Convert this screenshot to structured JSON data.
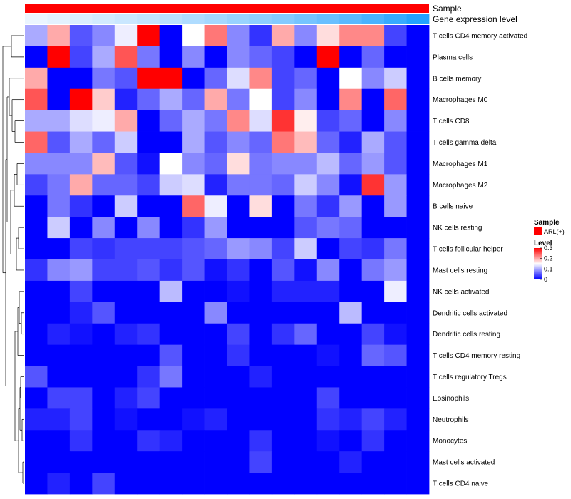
{
  "chart_data": {
    "type": "heatmap",
    "annotations": [
      {
        "name": "Sample",
        "kind": "categorical"
      },
      {
        "name": "Gene expression level",
        "kind": "gradient"
      }
    ],
    "rows": [
      "T cells CD4 memory activated",
      "Plasma cells",
      "B cells memory",
      "Macrophages M0",
      "T cells CD8",
      "T cells gamma delta",
      "Macrophages M1",
      "Macrophages M2",
      "B cells naive",
      "NK cells resting",
      "T cells follicular helper",
      "Mast cells resting",
      "NK cells activated",
      "Dendritic cells activated",
      "Dendritic cells resting",
      "T cells CD4 memory resting",
      "T cells regulatory  Tregs",
      "Eosinophils",
      "Neutrophils",
      "Monocytes",
      "Mast cells activated",
      "T cells CD4 naive"
    ],
    "n_columns": 18,
    "values": [
      [
        0.1,
        0.2,
        0.05,
        0.08,
        0.14,
        0.3,
        0.0,
        0.15,
        0.23,
        0.08,
        0.03,
        0.2,
        0.08,
        0.17,
        0.22,
        0.22,
        0.04,
        0.0
      ],
      [
        0.0,
        0.3,
        0.04,
        0.1,
        0.25,
        0.07,
        0.0,
        0.08,
        0.0,
        0.08,
        0.06,
        0.04,
        0.0,
        0.3,
        0.0,
        0.06,
        0.0,
        0.0
      ],
      [
        0.2,
        0.0,
        0.0,
        0.07,
        0.05,
        0.3,
        0.3,
        0.0,
        0.06,
        0.13,
        0.22,
        0.04,
        0.06,
        0.0,
        0.15,
        0.08,
        0.12,
        0.0
      ],
      [
        0.25,
        0.0,
        0.3,
        0.18,
        0.02,
        0.06,
        0.1,
        0.06,
        0.2,
        0.07,
        0.15,
        0.04,
        0.08,
        0.0,
        0.22,
        0.0,
        0.24,
        0.0
      ],
      [
        0.1,
        0.1,
        0.13,
        0.14,
        0.2,
        0.0,
        0.06,
        0.1,
        0.07,
        0.22,
        0.13,
        0.27,
        0.16,
        0.04,
        0.06,
        0.0,
        0.08,
        0.0
      ],
      [
        0.24,
        0.05,
        0.1,
        0.06,
        0.12,
        0.0,
        0.0,
        0.1,
        0.05,
        0.08,
        0.06,
        0.23,
        0.19,
        0.06,
        0.02,
        0.1,
        0.05,
        0.0
      ],
      [
        0.08,
        0.08,
        0.08,
        0.19,
        0.05,
        0.01,
        0.15,
        0.08,
        0.06,
        0.17,
        0.07,
        0.08,
        0.08,
        0.11,
        0.06,
        0.09,
        0.05,
        0.0
      ],
      [
        0.04,
        0.07,
        0.2,
        0.06,
        0.06,
        0.04,
        0.12,
        0.13,
        0.02,
        0.07,
        0.07,
        0.06,
        0.12,
        0.08,
        0.01,
        0.27,
        0.09,
        0.0
      ],
      [
        0.0,
        0.07,
        0.03,
        0.0,
        0.12,
        0.0,
        0.0,
        0.24,
        0.14,
        0.0,
        0.17,
        0.0,
        0.07,
        0.03,
        0.09,
        0.0,
        0.09,
        0.0
      ],
      [
        0.0,
        0.12,
        0.0,
        0.08,
        0.0,
        0.08,
        0.0,
        0.03,
        0.09,
        0.0,
        0.0,
        0.0,
        0.05,
        0.07,
        0.06,
        0.0,
        0.0,
        0.0
      ],
      [
        0.0,
        0.0,
        0.04,
        0.03,
        0.04,
        0.04,
        0.04,
        0.05,
        0.06,
        0.09,
        0.08,
        0.04,
        0.12,
        0.0,
        0.04,
        0.03,
        0.07,
        0.0
      ],
      [
        0.03,
        0.08,
        0.09,
        0.04,
        0.04,
        0.05,
        0.03,
        0.05,
        0.01,
        0.03,
        0.0,
        0.05,
        0.01,
        0.08,
        0.0,
        0.07,
        0.09,
        0.0
      ],
      [
        0.0,
        0.0,
        0.04,
        0.0,
        0.0,
        0.0,
        0.11,
        0.0,
        0.0,
        0.01,
        0.0,
        0.02,
        0.02,
        0.02,
        0.0,
        0.0,
        0.14,
        0.0
      ],
      [
        0.0,
        0.0,
        0.02,
        0.05,
        0.0,
        0.0,
        0.0,
        0.0,
        0.08,
        0.0,
        0.0,
        0.0,
        0.0,
        0.0,
        0.11,
        0.0,
        0.0,
        0.0
      ],
      [
        0.0,
        0.02,
        0.01,
        0.0,
        0.02,
        0.03,
        0.0,
        0.0,
        0.0,
        0.04,
        0.0,
        0.03,
        0.06,
        0.0,
        0.0,
        0.04,
        0.01,
        0.0
      ],
      [
        0.0,
        0.0,
        0.0,
        0.0,
        0.0,
        0.0,
        0.05,
        0.0,
        0.0,
        0.03,
        0.0,
        0.0,
        0.0,
        0.01,
        0.0,
        0.06,
        0.05,
        0.0
      ],
      [
        0.05,
        0.0,
        0.0,
        0.0,
        0.0,
        0.03,
        0.07,
        0.0,
        0.0,
        0.0,
        0.02,
        0.0,
        0.0,
        0.0,
        0.0,
        0.0,
        0.0,
        0.0
      ],
      [
        0.0,
        0.04,
        0.04,
        0.0,
        0.02,
        0.04,
        0.0,
        0.0,
        0.0,
        0.0,
        0.0,
        0.0,
        0.0,
        0.04,
        0.0,
        0.0,
        0.0,
        0.0
      ],
      [
        0.02,
        0.02,
        0.04,
        0.0,
        0.01,
        0.0,
        0.0,
        0.01,
        0.02,
        0.0,
        0.0,
        0.0,
        0.0,
        0.03,
        0.02,
        0.04,
        0.02,
        0.0
      ],
      [
        0.0,
        0.0,
        0.03,
        0.0,
        0.0,
        0.03,
        0.02,
        0.0,
        0.0,
        0.0,
        0.03,
        0.0,
        0.0,
        0.01,
        0.0,
        0.03,
        0.0,
        0.0
      ],
      [
        0.0,
        0.0,
        0.0,
        0.0,
        0.0,
        0.0,
        0.0,
        0.0,
        0.0,
        0.0,
        0.04,
        0.0,
        0.0,
        0.0,
        0.02,
        0.0,
        0.0,
        0.0
      ],
      [
        0.0,
        0.02,
        0.0,
        0.04,
        0.0,
        0.0,
        0.0,
        0.0,
        0.0,
        0.0,
        0.0,
        0.0,
        0.0,
        0.0,
        0.0,
        0.0,
        0.0,
        0.0
      ]
    ],
    "gene_expression_levels": [
      0.0,
      0.03,
      0.06,
      0.09,
      0.12,
      0.15,
      0.18,
      0.22,
      0.26,
      0.3,
      0.34,
      0.38,
      0.43,
      0.48,
      0.53,
      0.59,
      0.66,
      0.73
    ],
    "color_scale": {
      "low": "#0000ff",
      "mid": "#ffffff",
      "high": "#ff0000",
      "domain": [
        0,
        0.15,
        0.3
      ]
    },
    "legend": {
      "sample_title": "Sample",
      "sample_entries": [
        {
          "label": "ARL(+)",
          "color": "#ff0000"
        }
      ],
      "level_title": "Level",
      "level_ticks": [
        "0.3",
        "0.2",
        "0.1",
        "0"
      ],
      "level_tick_values": [
        0.3,
        0.2,
        0.1,
        0.0
      ]
    }
  }
}
